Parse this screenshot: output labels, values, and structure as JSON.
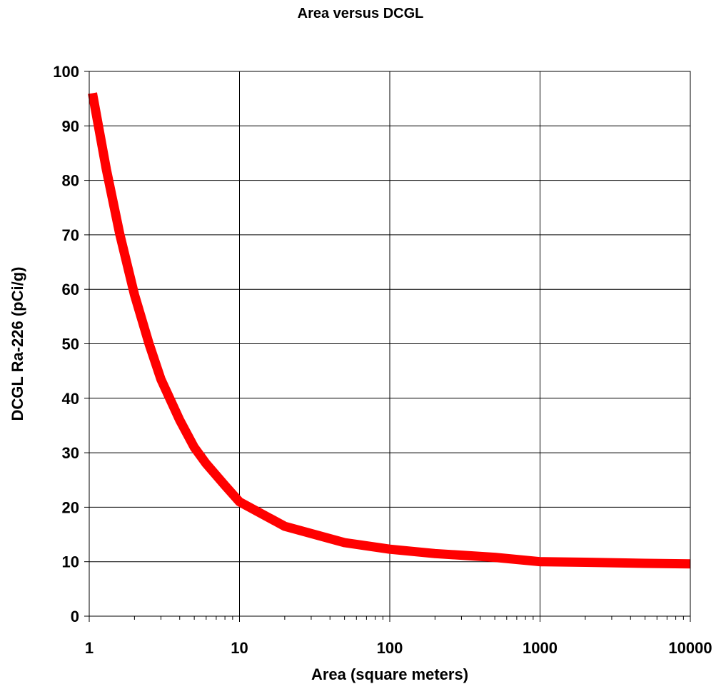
{
  "chart_data": {
    "type": "line",
    "title": "Area versus DCGL",
    "xlabel": "Area  (square meters)",
    "ylabel": "DCGL Ra-226 (pCi/g)",
    "x_scale": "log",
    "xlim": [
      1,
      10000
    ],
    "ylim": [
      0,
      100
    ],
    "x_ticks": [
      1,
      10,
      100,
      1000,
      10000
    ],
    "x_tick_labels": [
      "1",
      "10",
      "100",
      "1000",
      "10000"
    ],
    "y_ticks": [
      0,
      10,
      20,
      30,
      40,
      50,
      60,
      70,
      80,
      90,
      100
    ],
    "y_tick_labels": [
      "0",
      "10",
      "20",
      "30",
      "40",
      "50",
      "60",
      "70",
      "80",
      "90",
      "100"
    ],
    "grid": true,
    "legend": "none",
    "series": [
      {
        "color": "#ff0000",
        "x": [
          1.05,
          1.3,
          1.6,
          2,
          2.5,
          3,
          4,
          5,
          6,
          8,
          10,
          20,
          50,
          100,
          200,
          500,
          1000,
          2000,
          5000,
          10000
        ],
        "y": [
          96,
          82,
          70,
          59,
          50,
          43.5,
          36,
          31,
          28,
          24,
          21,
          16.5,
          13.5,
          12.3,
          11.5,
          10.8,
          10,
          9.9,
          9.7,
          9.6
        ]
      }
    ]
  }
}
